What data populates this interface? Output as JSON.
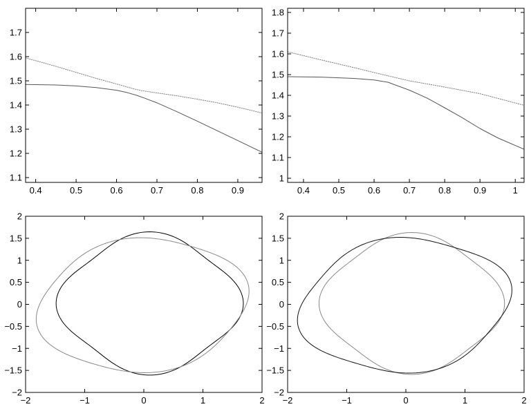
{
  "chart_data": [
    {
      "type": "line",
      "title": "",
      "xlabel": "",
      "ylabel": "",
      "xlim": [
        0.375,
        0.96
      ],
      "ylim": [
        1.08,
        1.8
      ],
      "xticks": [
        "0.4",
        "0.5",
        "0.6",
        "0.7",
        "0.8",
        "0.9"
      ],
      "yticks": [
        "1.1",
        "1.2",
        "1.3",
        "1.4",
        "1.5",
        "1.6",
        "1.7"
      ],
      "grid": false,
      "series": [
        {
          "style": "solid",
          "color": "#555555",
          "points": [
            [
              0.375,
              1.485
            ],
            [
              0.45,
              1.483
            ],
            [
              0.5,
              1.479
            ],
            [
              0.55,
              1.472
            ],
            [
              0.6,
              1.461
            ],
            [
              0.625,
              1.452
            ],
            [
              0.65,
              1.44
            ],
            [
              0.67,
              1.428
            ],
            [
              0.7,
              1.409
            ],
            [
              0.75,
              1.372
            ],
            [
              0.8,
              1.333
            ],
            [
              0.85,
              1.293
            ],
            [
              0.9,
              1.253
            ],
            [
              0.96,
              1.205
            ]
          ]
        },
        {
          "style": "dotted",
          "color": "#777777",
          "points": [
            [
              0.375,
              1.595
            ],
            [
              0.45,
              1.56
            ],
            [
              0.5,
              1.535
            ],
            [
              0.55,
              1.51
            ],
            [
              0.6,
              1.487
            ],
            [
              0.64,
              1.468
            ],
            [
              0.66,
              1.46
            ],
            [
              0.7,
              1.45
            ],
            [
              0.75,
              1.438
            ],
            [
              0.8,
              1.424
            ],
            [
              0.85,
              1.409
            ],
            [
              0.9,
              1.391
            ],
            [
              0.96,
              1.367
            ]
          ]
        }
      ]
    },
    {
      "type": "line",
      "title": "",
      "xlabel": "",
      "ylabel": "",
      "xlim": [
        0.355,
        1.025
      ],
      "ylim": [
        0.98,
        1.82
      ],
      "xticks": [
        "0.4",
        "0.5",
        "0.6",
        "0.7",
        "0.8",
        "0.9",
        "1"
      ],
      "yticks": [
        "1",
        "1.1",
        "1.2",
        "1.3",
        "1.4",
        "1.5",
        "1.6",
        "1.7",
        "1.8"
      ],
      "grid": false,
      "series": [
        {
          "style": "solid",
          "color": "#555555",
          "points": [
            [
              0.355,
              1.49
            ],
            [
              0.45,
              1.488
            ],
            [
              0.55,
              1.481
            ],
            [
              0.6,
              1.474
            ],
            [
              0.64,
              1.463
            ],
            [
              0.66,
              1.45
            ],
            [
              0.7,
              1.425
            ],
            [
              0.75,
              1.387
            ],
            [
              0.8,
              1.34
            ],
            [
              0.85,
              1.292
            ],
            [
              0.9,
              1.24
            ],
            [
              0.95,
              1.195
            ],
            [
              1.025,
              1.14
            ]
          ]
        },
        {
          "style": "dotted",
          "color": "#777777",
          "points": [
            [
              0.355,
              1.61
            ],
            [
              0.45,
              1.571
            ],
            [
              0.55,
              1.531
            ],
            [
              0.6,
              1.51
            ],
            [
              0.65,
              1.49
            ],
            [
              0.7,
              1.47
            ],
            [
              0.8,
              1.44
            ],
            [
              0.9,
              1.408
            ],
            [
              1.025,
              1.352
            ]
          ]
        }
      ]
    },
    {
      "type": "line",
      "title": "",
      "xlabel": "",
      "ylabel": "",
      "xlim": [
        -2,
        2
      ],
      "ylim": [
        -2,
        2
      ],
      "xticks": [
        "−2",
        "−1",
        "0",
        "1",
        "2"
      ],
      "yticks": [
        "−2",
        "−1.5",
        "−1",
        "−0.5",
        "0",
        "0.5",
        "1",
        "1.5",
        "2"
      ],
      "grid": false,
      "series": [
        {
          "kind": "closed-curve",
          "color": "#000000",
          "ellipse": {
            "cx": 0.1,
            "cy": 0.02,
            "rx": 1.48,
            "ry": 1.52,
            "rotation_deg": 0,
            "wobble": 0.07
          }
        },
        {
          "kind": "closed-curve",
          "color": "#888888",
          "ellipse": {
            "cx": -0.02,
            "cy": -0.02,
            "rx": 1.78,
            "ry": 1.48,
            "rotation_deg": 18,
            "wobble": 0.04
          }
        }
      ]
    },
    {
      "type": "line",
      "title": "",
      "xlabel": "",
      "ylabel": "",
      "xlim": [
        -2,
        2
      ],
      "ylim": [
        -2,
        2
      ],
      "xticks": [
        "−2",
        "−1",
        "0",
        "1",
        "2"
      ],
      "yticks": [
        "−2",
        "−1.5",
        "−1",
        "−0.5",
        "0",
        "0.5",
        "1",
        "1.5",
        "2"
      ],
      "grid": false,
      "series": [
        {
          "kind": "closed-curve",
          "color": "#888888",
          "ellipse": {
            "cx": 0.1,
            "cy": 0.02,
            "rx": 1.48,
            "ry": 1.52,
            "rotation_deg": 0,
            "wobble": 0.06
          }
        },
        {
          "kind": "closed-curve",
          "color": "#111111",
          "ellipse": {
            "cx": -0.02,
            "cy": -0.02,
            "rx": 1.78,
            "ry": 1.48,
            "rotation_deg": 18,
            "wobble": 0.05
          }
        }
      ]
    }
  ]
}
